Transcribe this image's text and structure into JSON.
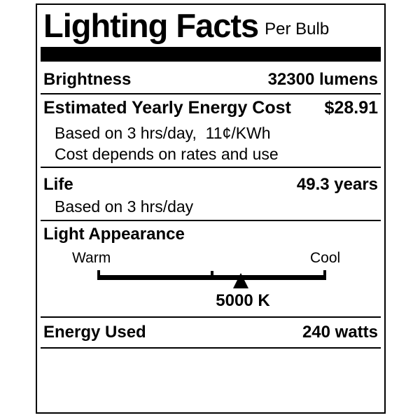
{
  "label": {
    "title": "Lighting Facts",
    "subtitle": "Per Bulb",
    "brightness": {
      "name": "Brightness",
      "value": "32300 lumens"
    },
    "energy_cost": {
      "name": "Estimated Yearly Energy Cost",
      "value": "$28.91",
      "note_basis": "Based on 3 hrs/day,  11¢/KWh",
      "note_disclaimer": "Cost depends on rates and use"
    },
    "life": {
      "name": "Life",
      "value": "49.3 years",
      "note": "Based on 3 hrs/day"
    },
    "light_appearance": {
      "name": "Light Appearance",
      "warm": "Warm",
      "cool": "Cool",
      "color_temp": "5000 K",
      "marker_position_pct": 62.7
    },
    "energy_used": {
      "name": "Energy Used",
      "value": "240 watts"
    },
    "colors": {
      "ink": "#000000",
      "background": "#ffffff"
    }
  }
}
